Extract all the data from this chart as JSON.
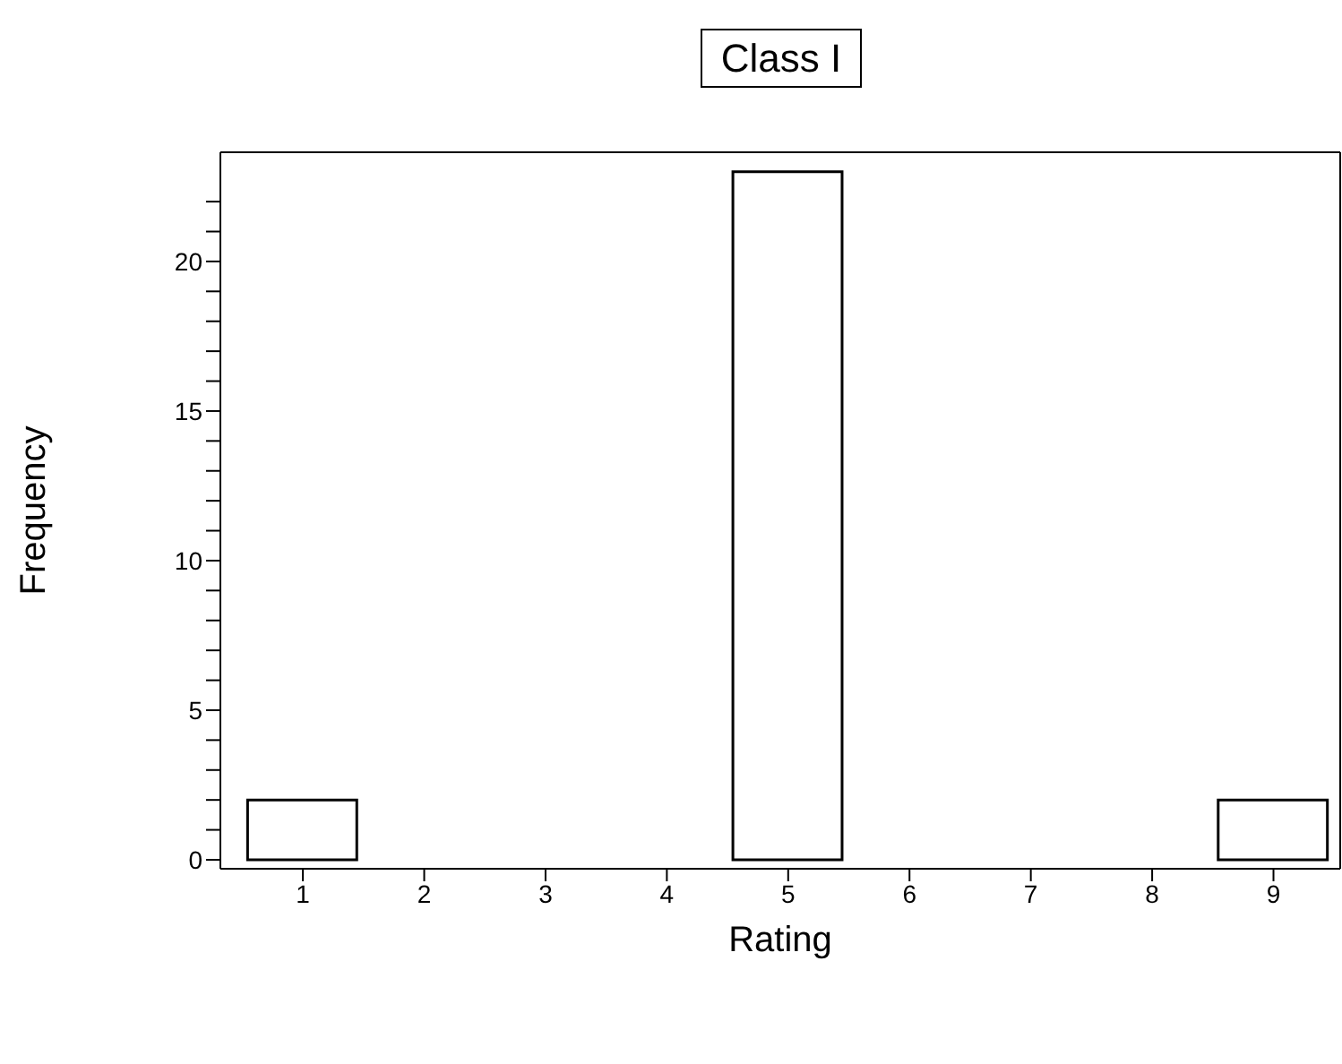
{
  "chart_data": {
    "type": "histogram",
    "title": "Class I",
    "xlabel": "Rating",
    "ylabel": "Frequency",
    "bins": [
      0.5,
      1.5,
      2.5,
      3.5,
      4.5,
      5.5,
      6.5,
      7.5,
      8.5,
      9.5
    ],
    "values": [
      2,
      0,
      0,
      0,
      23,
      0,
      0,
      0,
      2
    ],
    "color": "#ffffff",
    "xlim": [
      0.32,
      9.55
    ],
    "xticks": [
      1,
      2,
      3,
      4,
      5,
      6,
      7,
      8,
      9
    ],
    "ylim": [
      -0.3,
      23.65
    ],
    "yticks": [
      0,
      {
        "value": 1,
        "label": null
      },
      {
        "value": 2,
        "label": null
      },
      {
        "value": 3,
        "label": null
      },
      {
        "value": 4,
        "label": null
      },
      5,
      {
        "value": 6,
        "label": null
      },
      {
        "value": 7,
        "label": null
      },
      {
        "value": 8,
        "label": null
      },
      {
        "value": 9,
        "label": null
      },
      10,
      {
        "value": 11,
        "label": null
      },
      {
        "value": 12,
        "label": null
      },
      {
        "value": 13,
        "label": null
      },
      {
        "value": 14,
        "label": null
      },
      15,
      {
        "value": 16,
        "label": null
      },
      {
        "value": 17,
        "label": null
      },
      {
        "value": 18,
        "label": null
      },
      {
        "value": 19,
        "label": null
      },
      20,
      {
        "value": 21,
        "label": null
      },
      {
        "value": 22,
        "label": null
      }
    ],
    "grid": false,
    "legend": false
  }
}
